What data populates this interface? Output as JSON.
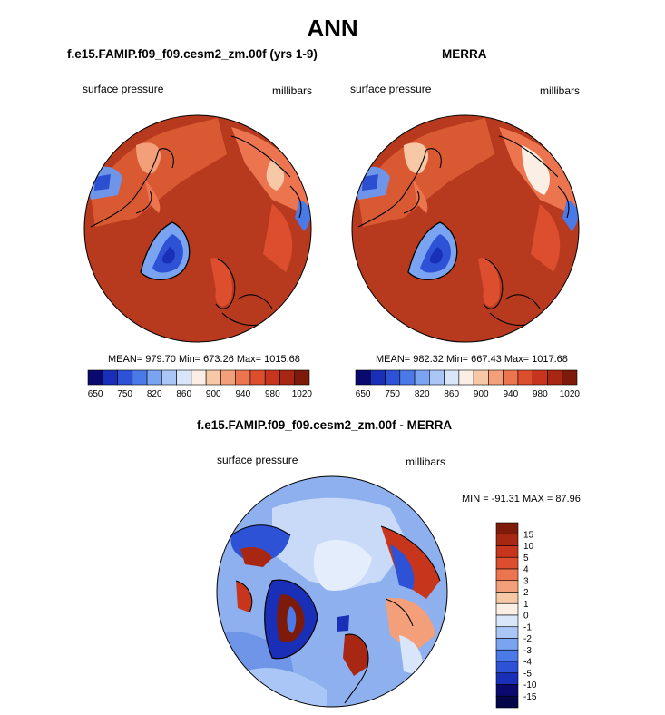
{
  "figure": {
    "title": "ANN"
  },
  "panels": [
    {
      "id": "model",
      "title": "f.e15.FAMIP.f09_f09.cesm2_zm.00f (yrs 1-9)",
      "left_label": "surface pressure",
      "right_label": "millibars",
      "stats": "MEAN= 979.70  Min= 673.26  Max= 1015.68",
      "colorbar": {
        "orientation": "horizontal",
        "tick_labels": [
          "650",
          "750",
          "820",
          "860",
          "900",
          "940",
          "980",
          "1020"
        ],
        "colors": [
          "#0a0a6e",
          "#1a2fb8",
          "#2d52d6",
          "#4a79e8",
          "#7aa4f2",
          "#a9c6f6",
          "#d9e6fa",
          "#fbeee4",
          "#f7c8a6",
          "#f3a07a",
          "#ec7550",
          "#dd4e2e",
          "#c7361c",
          "#a82712",
          "#7e1a0a"
        ]
      }
    },
    {
      "id": "obs",
      "title": "MERRA",
      "left_label": "surface pressure",
      "right_label": "millibars",
      "stats": "MEAN= 982.32  Min= 667.43  Max= 1017.68",
      "colorbar": {
        "orientation": "horizontal",
        "tick_labels": [
          "650",
          "750",
          "820",
          "860",
          "900",
          "940",
          "980",
          "1020"
        ],
        "colors": [
          "#0a0a6e",
          "#1a2fb8",
          "#2d52d6",
          "#4a79e8",
          "#7aa4f2",
          "#a9c6f6",
          "#d9e6fa",
          "#fbeee4",
          "#f7c8a6",
          "#f3a07a",
          "#ec7550",
          "#dd4e2e",
          "#c7361c",
          "#a82712",
          "#7e1a0a"
        ]
      }
    },
    {
      "id": "diff",
      "title": "f.e15.FAMIP.f09_f09.cesm2_zm.00f - MERRA",
      "left_label": "surface pressure",
      "right_label": "millibars",
      "stats": "MIN = -91.31 MAX =  87.96",
      "colorbar": {
        "orientation": "vertical",
        "tick_labels": [
          "15",
          "10",
          "5",
          "4",
          "3",
          "2",
          "1",
          "0",
          "-1",
          "-2",
          "-3",
          "-4",
          "-5",
          "-10",
          "-15"
        ],
        "colors": [
          "#7e1a0a",
          "#a82712",
          "#c7361c",
          "#dd4e2e",
          "#ec7550",
          "#f3a07a",
          "#f7c8a6",
          "#fbeee4",
          "#d9e6fa",
          "#a9c6f6",
          "#7aa4f2",
          "#4a79e8",
          "#2d52d6",
          "#1a2fb8",
          "#0a0a6e",
          "#05054a"
        ]
      }
    }
  ],
  "map_colors": {
    "background_field": "#b83a1e",
    "coastline": "#000000",
    "diff_background": "#8fb0ee"
  }
}
